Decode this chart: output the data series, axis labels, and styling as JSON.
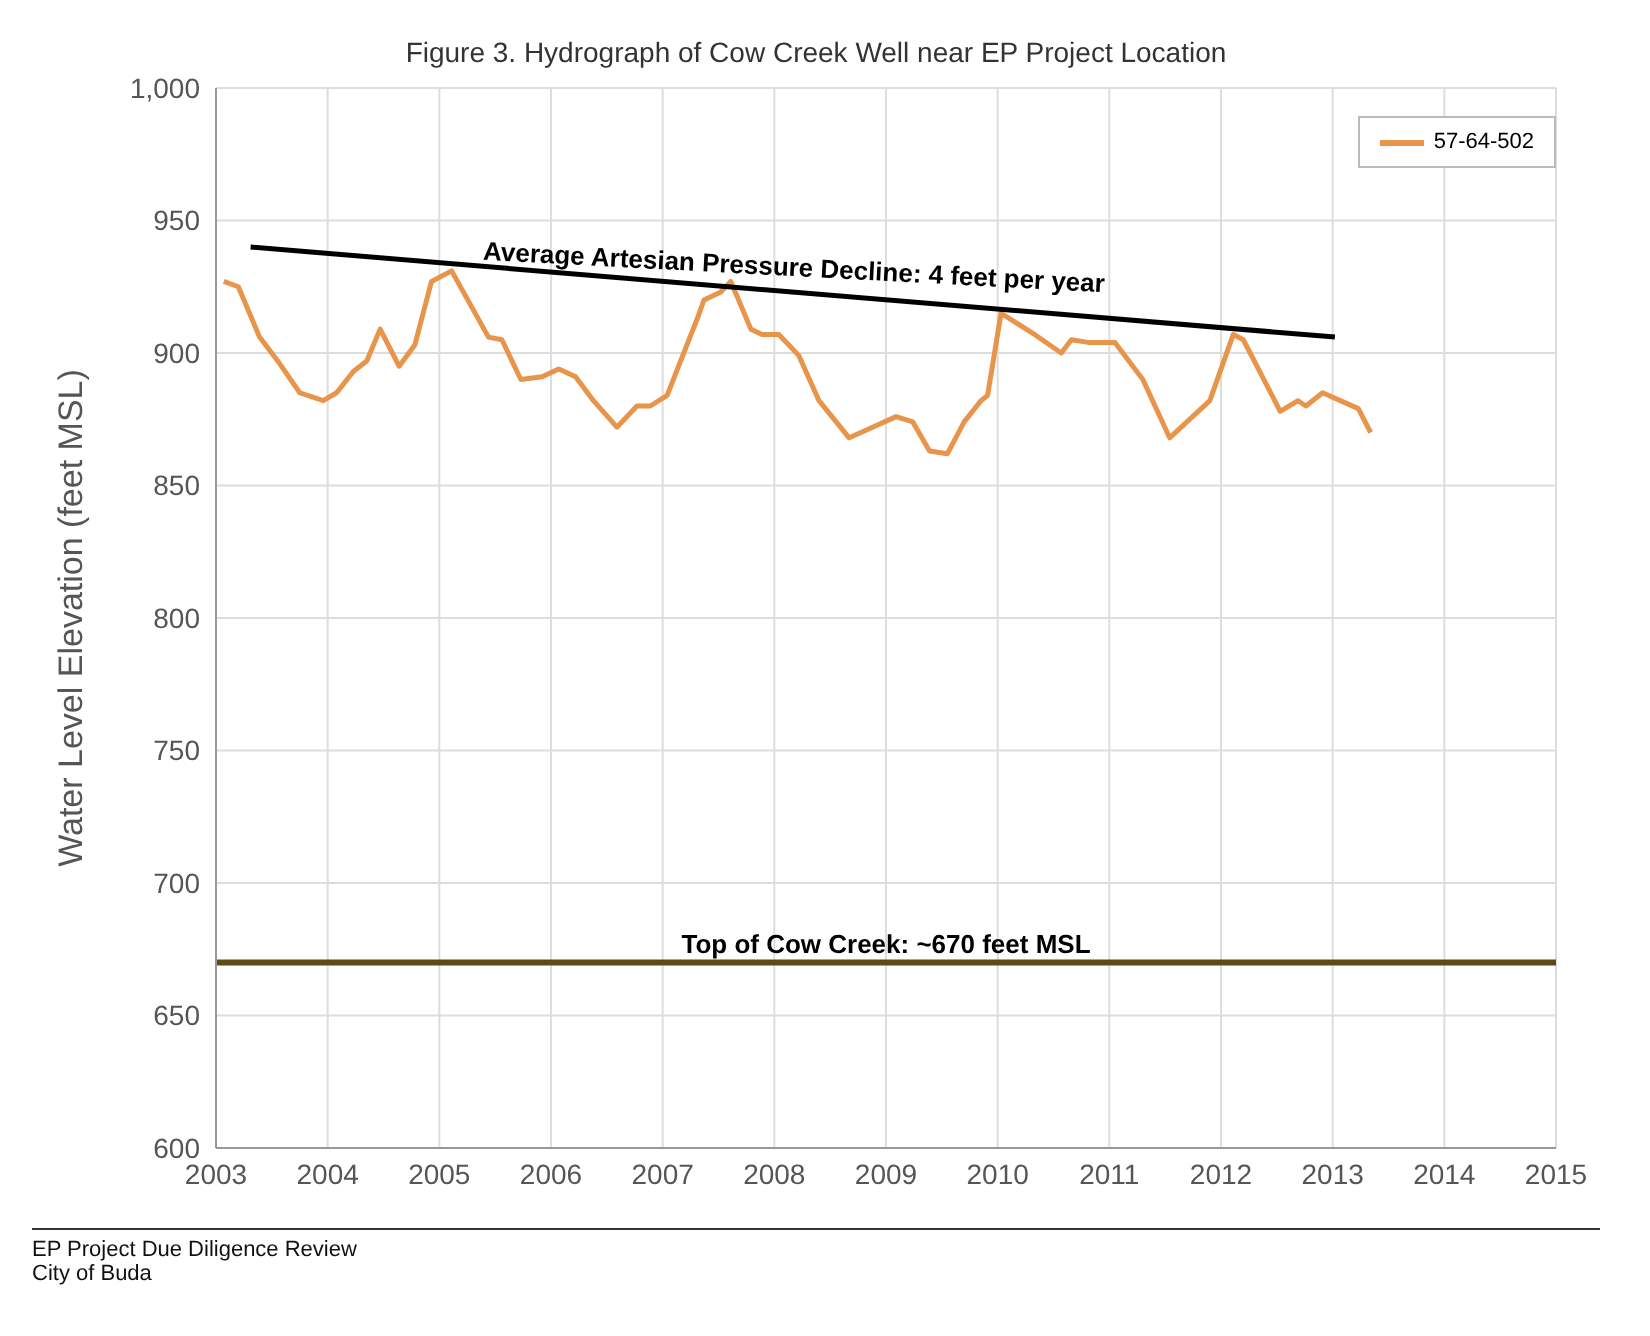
{
  "chart_data": {
    "type": "line",
    "title": "Figure 3. Hydrograph of Cow Creek Well near EP Project Location",
    "ylabel": "Water Level Elevation (feet MSL)",
    "xlim": [
      2003,
      2015
    ],
    "xticks": [
      2003,
      2004,
      2005,
      2006,
      2007,
      2008,
      2009,
      2010,
      2011,
      2012,
      2013,
      2014,
      2015
    ],
    "ylim": [
      600,
      1000
    ],
    "yticks": [
      600,
      650,
      700,
      750,
      800,
      850,
      900,
      950,
      {
        "value": 1000,
        "label": "1,000"
      }
    ],
    "grid": true,
    "legend": "top right",
    "marker": "none",
    "line_style": "solid",
    "series": [
      {
        "name": "57-64-502",
        "color": "#e8944a",
        "x": [
          2003.07,
          2003.2,
          2003.39,
          2003.57,
          2003.75,
          2003.96,
          2004.08,
          2004.23,
          2004.35,
          2004.47,
          2004.64,
          2004.78,
          2004.93,
          2005.11,
          2005.44,
          2005.56,
          2005.73,
          2005.92,
          2006.07,
          2006.22,
          2006.38,
          2006.59,
          2006.77,
          2006.89,
          2007.04,
          2007.31,
          2007.37,
          2007.52,
          2007.61,
          2007.79,
          2007.89,
          2008.04,
          2008.22,
          2008.4,
          2008.67,
          2008.88,
          2009.09,
          2009.24,
          2009.39,
          2009.55,
          2009.7,
          2009.85,
          2009.91,
          2010.03,
          2010.33,
          2010.57,
          2010.66,
          2010.81,
          2011.05,
          2011.3,
          2011.54,
          2011.9,
          2012.11,
          2012.2,
          2012.53,
          2012.69,
          2012.76,
          2012.91,
          2013.23,
          2013.34
        ],
        "values": [
          927,
          925,
          906,
          896,
          885,
          882,
          885,
          893,
          897,
          909,
          895,
          903,
          927,
          931,
          906,
          905,
          890,
          891,
          894,
          891,
          882,
          872,
          880,
          880,
          884,
          913,
          920,
          923,
          927,
          909,
          907,
          907,
          899,
          882,
          868,
          872,
          876,
          874,
          863,
          862,
          874,
          882,
          884,
          915,
          907,
          900,
          905,
          904,
          904,
          890,
          868,
          882,
          907,
          905,
          878,
          882,
          880,
          885,
          879,
          870
        ]
      },
      {
        "type": "line",
        "name": "Average Artesian Pressure Decline: 4 feet per year",
        "color": "#000000",
        "x": [
          2003.31,
          2013.02
        ],
        "values": [
          940,
          906
        ]
      }
    ],
    "ref_lines": [
      {
        "axis": "y",
        "value": 670,
        "label": "Top of Cow Creek: ~670 feet MSL",
        "color": "#5e4a12"
      }
    ],
    "annotations": [
      "EP Project Due Diligence Review",
      "City of Buda"
    ]
  }
}
